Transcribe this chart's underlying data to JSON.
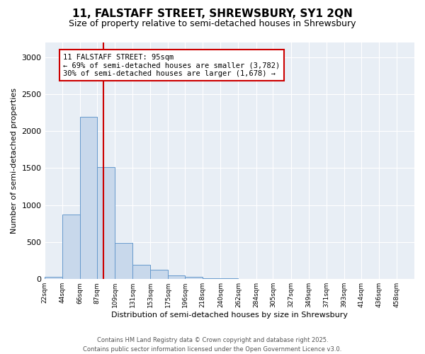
{
  "title": "11, FALSTAFF STREET, SHREWSBURY, SY1 2QN",
  "subtitle": "Size of property relative to semi-detached houses in Shrewsbury",
  "xlabel": "Distribution of semi-detached houses by size in Shrewsbury",
  "ylabel": "Number of semi-detached properties",
  "bar_color": "#c8d8eb",
  "bar_edge_color": "#6699cc",
  "bin_labels": [
    "22sqm",
    "44sqm",
    "66sqm",
    "87sqm",
    "109sqm",
    "131sqm",
    "153sqm",
    "175sqm",
    "196sqm",
    "218sqm",
    "240sqm",
    "262sqm",
    "284sqm",
    "305sqm",
    "327sqm",
    "349sqm",
    "371sqm",
    "393sqm",
    "414sqm",
    "436sqm",
    "458sqm"
  ],
  "bar_heights": [
    25,
    870,
    2190,
    1510,
    490,
    195,
    120,
    48,
    28,
    8,
    5,
    0,
    0,
    0,
    0,
    0,
    0,
    0,
    0,
    0,
    0
  ],
  "bin_edges": [
    22,
    44,
    66,
    87,
    109,
    131,
    153,
    175,
    196,
    218,
    240,
    262,
    284,
    305,
    327,
    349,
    371,
    393,
    414,
    436,
    458,
    480
  ],
  "property_size": 95,
  "red_line_color": "#cc0000",
  "annotation_line1": "11 FALSTAFF STREET: 95sqm",
  "annotation_line2": "← 69% of semi-detached houses are smaller (3,782)",
  "annotation_line3": "30% of semi-detached houses are larger (1,678) →",
  "annotation_box_color": "#ffffff",
  "annotation_border_color": "#cc0000",
  "ylim": [
    0,
    3200
  ],
  "background_color": "#ffffff",
  "plot_bg_color": "#e8eef5",
  "grid_color": "#ffffff",
  "footer_text": "Contains HM Land Registry data © Crown copyright and database right 2025.\nContains public sector information licensed under the Open Government Licence v3.0.",
  "title_fontsize": 11,
  "subtitle_fontsize": 9,
  "annotation_fontsize": 7.5,
  "footer_fontsize": 6.0,
  "ylabel_fontsize": 8,
  "xlabel_fontsize": 8
}
